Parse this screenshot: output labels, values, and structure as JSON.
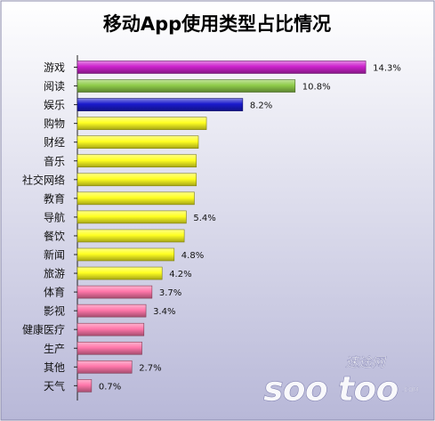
{
  "chart_data": {
    "type": "bar",
    "orientation": "horizontal",
    "title": "移动App使用类型占比情况",
    "xlabel": "",
    "ylabel": "",
    "categories": [
      "游戏",
      "阅读",
      "娱乐",
      "购物",
      "财经",
      "音乐",
      "社交网络",
      "教育",
      "导航",
      "餐饮",
      "新闻",
      "旅游",
      "体育",
      "影视",
      "健康医疗",
      "生产",
      "其他",
      "天气"
    ],
    "values": [
      14.3,
      10.8,
      8.2,
      6.4,
      6.0,
      5.9,
      5.9,
      5.8,
      5.4,
      5.3,
      4.8,
      4.2,
      3.7,
      3.4,
      3.3,
      3.2,
      2.7,
      0.7
    ],
    "data_labels": [
      "14.3%",
      "10.8%",
      "8.2%",
      "",
      "",
      "",
      "",
      "",
      "5.4%",
      "",
      "4.8%",
      "4.2%",
      "3.7%",
      "3.4%",
      "",
      "",
      "2.7%",
      "0.7%"
    ],
    "bar_colors": [
      "#cc22cc",
      "#8fcc4a",
      "#1a1acc",
      "#ffff22",
      "#ffff22",
      "#ffff22",
      "#ffff22",
      "#ffff22",
      "#ffff22",
      "#ffff22",
      "#ffff22",
      "#ffff22",
      "#ff77aa",
      "#ff77aa",
      "#ff77aa",
      "#ff77aa",
      "#ff77aa",
      "#ff77aa"
    ],
    "xlim": [
      0,
      15
    ],
    "grid": false,
    "legend": "none",
    "colors": {
      "background_top": "#ffffff",
      "background_bottom": "#b8b8d8",
      "axis": "#222222",
      "watermark": "#ffffff"
    }
  },
  "watermark": {
    "text": "soo too",
    "subtext": "速途网",
    "suffix": ".COM"
  }
}
